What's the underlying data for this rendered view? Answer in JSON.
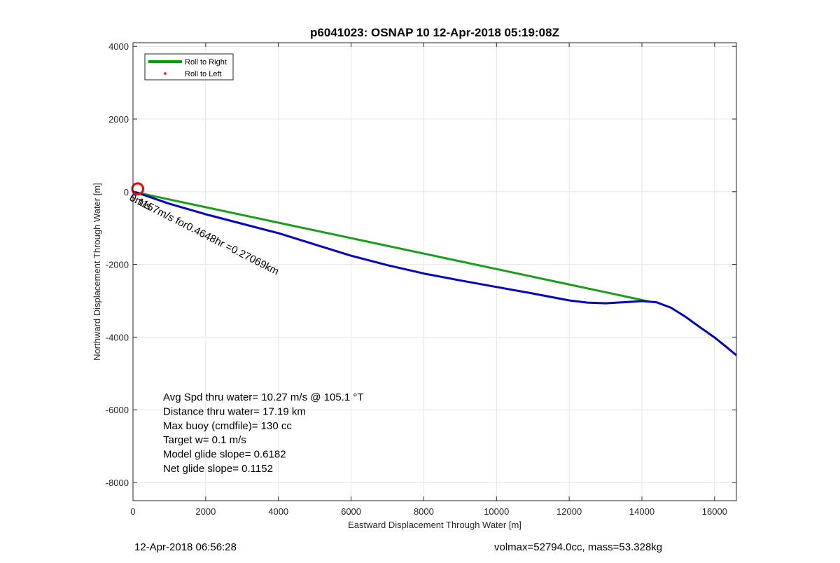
{
  "chart_data": {
    "type": "line",
    "title": "p6041023: OSNAP 10 12-Apr-2018 05:19:08Z",
    "xlabel": "Eastward Displacement Through Water [m]",
    "ylabel": "Northward Displacement Through Water [m]",
    "xlim": [
      0,
      16600
    ],
    "ylim": [
      -8500,
      4100
    ],
    "xticks": [
      0,
      2000,
      4000,
      6000,
      8000,
      10000,
      12000,
      14000,
      16000
    ],
    "yticks": [
      4000,
      2000,
      0,
      -2000,
      -4000,
      -6000,
      -8000
    ],
    "grid": true,
    "legend": {
      "placement": "top-left",
      "entries": [
        {
          "name": "Roll to Right",
          "color": "#00a000",
          "style": "line"
        },
        {
          "name": "Roll to Left",
          "color": "#ff0000",
          "style": "dot"
        }
      ]
    },
    "series": [
      {
        "name": "Roll to Right",
        "color": "#1a9e1a",
        "x": [
          0,
          14200
        ],
        "y": [
          0,
          -3020
        ]
      },
      {
        "color": "#0000c8",
        "x": [
          0,
          300,
          1000,
          2000,
          3000,
          4000,
          5000,
          6000,
          7000,
          8000,
          9000,
          10000,
          11000,
          12000,
          12500,
          13000,
          13500,
          14000,
          14400,
          14800,
          15200,
          15600,
          16000,
          16300,
          16600
        ],
        "y": [
          0,
          -90,
          -330,
          -620,
          -880,
          -1140,
          -1450,
          -1760,
          -2020,
          -2250,
          -2440,
          -2620,
          -2800,
          -2990,
          -3050,
          -3070,
          -3040,
          -3010,
          -3040,
          -3190,
          -3440,
          -3730,
          -4010,
          -4250,
          -4500
        ]
      },
      {
        "name": "Roll to Left",
        "color": "#ff0000",
        "type": "circle",
        "center": [
          130,
          80
        ],
        "radius_m": 150
      }
    ],
    "annotations": [
      {
        "text": "5m/s",
        "x": 0,
        "y": 0,
        "rotation": 27
      },
      {
        "text": "0.1157m/s for0.4648hr =0.27069km",
        "x": 0,
        "y": 0,
        "rotation": 27
      }
    ],
    "stats": [
      "Avg Spd thru water= 10.27 m/s @ 105.1 °T",
      "Distance thru water= 17.19 km",
      "Max buoy (cmdfile)= 130 cc",
      "Target w= 0.1 m/s",
      "Model glide slope= 0.6182",
      "Net glide slope= 0.1152"
    ]
  },
  "footer": {
    "left": "12-Apr-2018 06:56:28",
    "right": "volmax=52794.0cc, mass=53.328kg"
  }
}
